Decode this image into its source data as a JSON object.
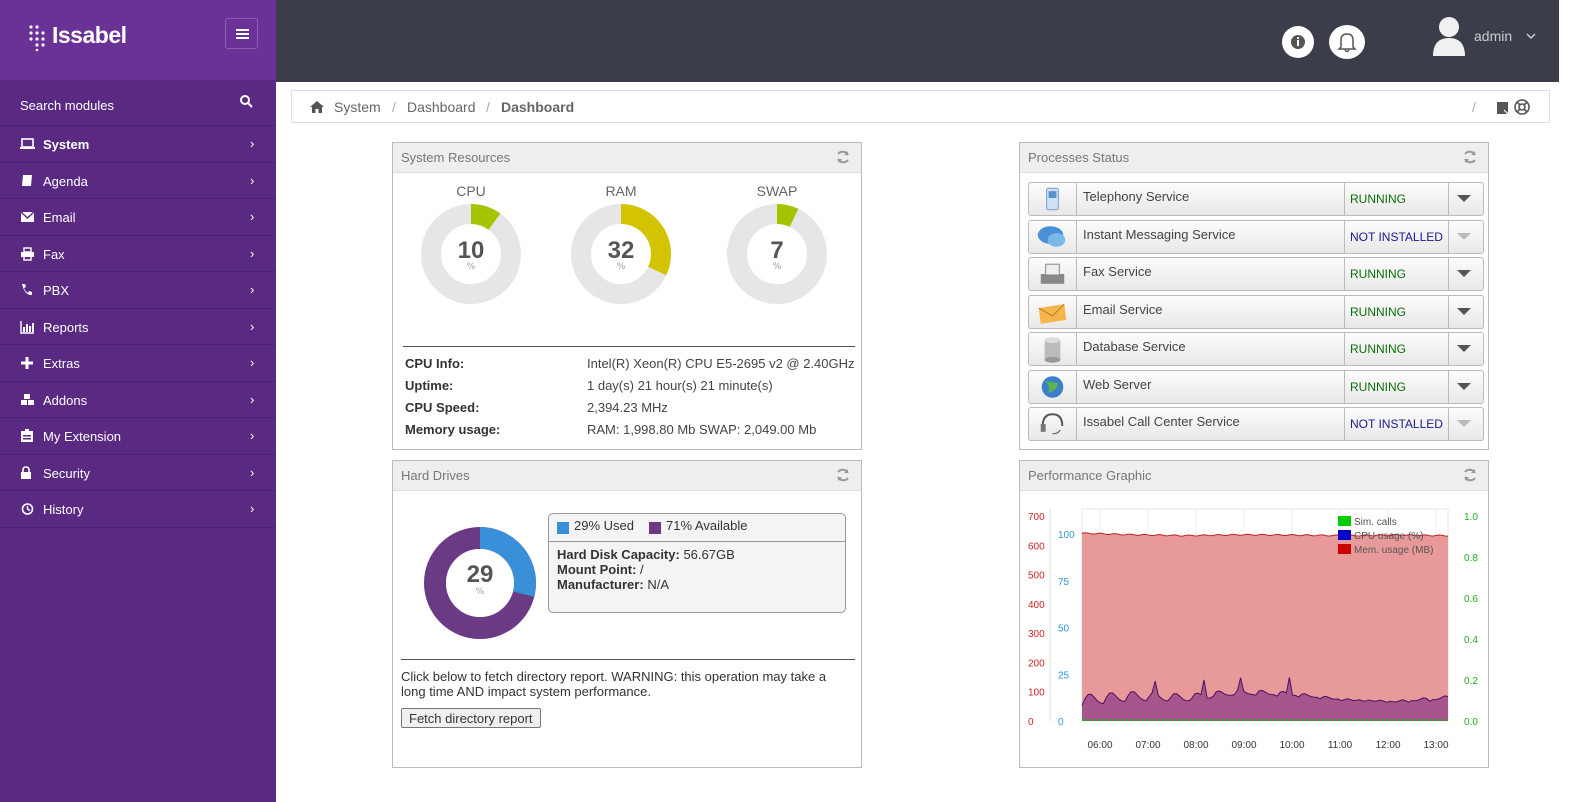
{
  "brand": {
    "name": "Issabel"
  },
  "sidebar": {
    "search_label": "Search modules",
    "items": [
      {
        "label": "System",
        "icon": "laptop-icon"
      },
      {
        "label": "Agenda",
        "icon": "book-icon"
      },
      {
        "label": "Email",
        "icon": "envelope-icon"
      },
      {
        "label": "Fax",
        "icon": "printer-icon"
      },
      {
        "label": "PBX",
        "icon": "phone-icon"
      },
      {
        "label": "Reports",
        "icon": "bar-chart-icon"
      },
      {
        "label": "Extras",
        "icon": "plus-icon"
      },
      {
        "label": "Addons",
        "icon": "cubes-icon"
      },
      {
        "label": "My Extension",
        "icon": "id-card-icon"
      },
      {
        "label": "Security",
        "icon": "lock-icon"
      },
      {
        "label": "History",
        "icon": "history-icon"
      }
    ]
  },
  "topbar": {
    "user_name": "admin"
  },
  "breadcrumb": {
    "items": [
      "System",
      "Dashboard",
      "Dashboard"
    ],
    "separator": "/"
  },
  "system_resources": {
    "title": "System Resources",
    "gauges": [
      {
        "label": "CPU",
        "value": "10",
        "unit": "%",
        "fraction": 0.1,
        "color": "#a4c400"
      },
      {
        "label": "RAM",
        "value": "32",
        "unit": "%",
        "fraction": 0.32,
        "color": "#d4c300"
      },
      {
        "label": "SWAP",
        "value": "7",
        "unit": "%",
        "fraction": 0.07,
        "color": "#a4c400"
      }
    ],
    "info": [
      {
        "key": "CPU Info:",
        "value": "Intel(R) Xeon(R) CPU E5-2695 v2 @ 2.40GHz"
      },
      {
        "key": "Uptime:",
        "value": "1 day(s) 21 hour(s) 21 minute(s)"
      },
      {
        "key": "CPU Speed:",
        "value": "2,394.23 MHz"
      },
      {
        "key": "Memory usage:",
        "value": "RAM: 1,998.80 Mb SWAP: 2,049.00 Mb"
      }
    ]
  },
  "processes": {
    "title": "Processes Status",
    "items": [
      {
        "name": "Telephony Service",
        "status": "RUNNING",
        "icon": "phone-handset-icon"
      },
      {
        "name": "Instant Messaging Service",
        "status": "NOT INSTALLED",
        "icon": "chat-bubbles-icon"
      },
      {
        "name": "Fax Service",
        "status": "RUNNING",
        "icon": "fax-machine-icon"
      },
      {
        "name": "Email Service",
        "status": "RUNNING",
        "icon": "envelope-icon"
      },
      {
        "name": "Database Service",
        "status": "RUNNING",
        "icon": "database-icon"
      },
      {
        "name": "Web Server",
        "status": "RUNNING",
        "icon": "globe-icon"
      },
      {
        "name": "Issabel Call Center Service",
        "status": "NOT INSTALLED",
        "icon": "headset-icon"
      }
    ]
  },
  "hard_drives": {
    "title": "Hard Drives",
    "used_value": "29",
    "used_unit": "%",
    "used_fraction": 0.29,
    "legend_used": "29% Used",
    "legend_available": "71% Available",
    "used_color": "#3a8fd9",
    "available_color": "#6a3a84",
    "capacity_label": "Hard Disk Capacity:",
    "capacity_value": "56.67GB",
    "mount_label": "Mount Point:",
    "mount_value": "/",
    "manufacturer_label": "Manufacturer:",
    "manufacturer_value": "N/A",
    "fetch_text": "Click below to fetch directory report. WARNING: this operation may take a long time AND impact system performance.",
    "fetch_button": "Fetch directory report"
  },
  "performance": {
    "title": "Performance Graphic"
  },
  "chart_data": {
    "type": "area",
    "x": [
      "06:00",
      "07:00",
      "08:00",
      "09:00",
      "10:00",
      "11:00",
      "12:00",
      "13:00"
    ],
    "y_left_mem": {
      "ticks": [
        "700",
        "600",
        "500",
        "400",
        "300",
        "200",
        "100",
        "0"
      ],
      "range": [
        0,
        700
      ]
    },
    "y_left_cpu": {
      "ticks": [
        "100",
        "75",
        "50",
        "25",
        "0"
      ],
      "range": [
        0,
        100
      ]
    },
    "y_right_calls": {
      "ticks": [
        "1.0",
        "0.8",
        "0.6",
        "0.4",
        "0.2",
        "0.0"
      ],
      "range": [
        0,
        1.0
      ]
    },
    "series": [
      {
        "name": "Sim. calls",
        "color": "#00cc00",
        "values": [
          0,
          0,
          0,
          0,
          0,
          0,
          0,
          0
        ]
      },
      {
        "name": "CPU usage (%)",
        "color": "#0000cc",
        "values": [
          8,
          10,
          9,
          12,
          11,
          8,
          7,
          9
        ]
      },
      {
        "name": "Mem. usage (MB)",
        "color": "#cc0000",
        "values": [
          620,
          615,
          612,
          615,
          614,
          612,
          614,
          612
        ]
      }
    ],
    "legend": "top-right"
  }
}
